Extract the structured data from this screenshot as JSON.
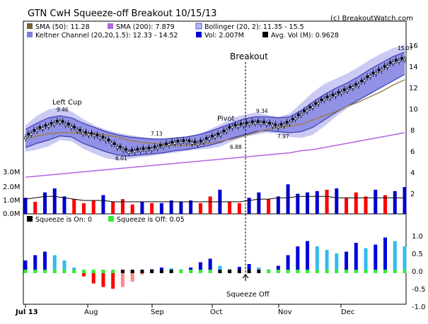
{
  "chart_title": "GTN CwH Squeeze-off Breakout 10/15/13",
  "credit": "(c) BreakoutWatch.com",
  "colors": {
    "up": "#0000cc",
    "down": "#ff0000",
    "sma50": "#333333",
    "sma200": "#aa44cc",
    "bollinger_fill": "#b8b8f0",
    "keltner_fill": "#7e7ee0",
    "keltner_line": "#3b3bb0",
    "sma_lines": "#9a8052",
    "sma200_line": "#b366dd",
    "squeeze_on": "#000000",
    "squeeze_off": "#33ee33",
    "mom_pos_a": "#0000dd",
    "mom_pos_b": "#33bbee",
    "mom_neg_a": "#ff0000",
    "mom_neg_b": "#ff8888"
  },
  "price_panel": {
    "legend": [
      {
        "label": "SMA (50): 11.28",
        "swatch": "#7a6233"
      },
      {
        "label": "SMA (200): 7.879",
        "swatch": "#b366dd"
      },
      {
        "label": "Bollinger (20, 2): 11.35 - 15.5",
        "swatch": "#b8b8f0"
      },
      {
        "label": "Keltner Channel (20,20,1.5): 12.33 - 14.52",
        "swatch": "#7e7ee0"
      },
      {
        "label": "Vol: 2.007M",
        "swatch": "#0000cc"
      },
      {
        "label": "Avg. Vol (M): 0.9628",
        "swatch": "#000000"
      }
    ],
    "y_ticks": [
      "2",
      "4",
      "6",
      "8",
      "10",
      "12",
      "14",
      "16"
    ],
    "volume_ticks": [
      "0.0M",
      "1.0M",
      "2.0M",
      "3.0M"
    ],
    "annotations": {
      "left_cup": "Left Cup",
      "high_1": "9.46",
      "low_1": "6.01",
      "mid_1": "7.13",
      "pivot": "Pivot",
      "pivot_high": "9.34",
      "handle_low": "6.88",
      "breakout_low": "7.97",
      "last_high": "15.07",
      "breakout": "Breakout"
    }
  },
  "squeeze_panel": {
    "legend": [
      {
        "label": "Squeeze is On: 0",
        "swatch": "#000000"
      },
      {
        "label": "Squeeze is Off: 0.05",
        "swatch": "#33ee33"
      }
    ],
    "y_ticks": [
      "-1.0",
      "-0.5",
      "0.0",
      "0.5",
      "1.0"
    ],
    "annotation": "Squeeze Off"
  },
  "x_ticks": [
    "Jul 13",
    "Aug",
    "Sep",
    "Oct",
    "Nov",
    "Dec"
  ],
  "chart_data": {
    "type": "line",
    "title": "GTN CwH Squeeze-off Breakout 10/15/13",
    "x_ticks": [
      "Jul 13",
      "Aug",
      "Sep",
      "Oct",
      "Nov",
      "Dec"
    ],
    "price_ylim": [
      0,
      16
    ],
    "volume_ylim": [
      0,
      3
    ],
    "squeeze_ylim": [
      -1,
      1.25
    ],
    "close_weekly": [
      7.6,
      8.3,
      8.7,
      9.1,
      8.6,
      8.0,
      7.8,
      7.4,
      6.7,
      6.2,
      6.4,
      6.5,
      6.8,
      7.1,
      7.2,
      7.0,
      7.5,
      7.9,
      8.6,
      8.8,
      9.0,
      8.9,
      8.6,
      9.0,
      9.8,
      10.5,
      11.2,
      11.6,
      12.1,
      12.6,
      13.4,
      14.0,
      14.7,
      15.0
    ],
    "series": [
      {
        "name": "SMA (50)",
        "values": [
          7.4,
          7.7,
          7.9,
          8.0,
          8.0,
          7.9,
          7.9,
          7.8,
          7.6,
          7.3,
          7.1,
          7.0,
          6.9,
          6.8,
          6.8,
          6.9,
          7.0,
          7.2,
          7.4,
          7.7,
          8.0,
          8.3,
          8.5,
          8.6,
          8.8,
          9.2,
          9.6,
          10.0,
          10.5,
          10.9,
          11.4,
          11.9,
          12.5,
          13.0
        ]
      },
      {
        "name": "SMA (200)",
        "values": [
          3.8,
          3.9,
          4.0,
          4.1,
          4.2,
          4.3,
          4.4,
          4.5,
          4.6,
          4.7,
          4.8,
          4.9,
          5.0,
          5.1,
          5.2,
          5.3,
          5.4,
          5.5,
          5.6,
          5.7,
          5.8,
          5.9,
          6.0,
          6.1,
          6.3,
          6.4,
          6.6,
          6.8,
          7.0,
          7.2,
          7.4,
          7.6,
          7.8,
          8.0
        ]
      },
      {
        "name": "Bollinger (20, 2) upper",
        "values": [
          8.7,
          9.6,
          10.2,
          10.4,
          10.0,
          9.3,
          8.7,
          8.3,
          8.0,
          7.8,
          7.6,
          7.5,
          7.4,
          7.5,
          7.6,
          7.8,
          8.3,
          8.8,
          9.4,
          9.7,
          9.9,
          9.7,
          9.5,
          9.8,
          10.8,
          11.8,
          12.6,
          13.1,
          13.6,
          14.2,
          14.9,
          15.5,
          16.0,
          16.3
        ]
      },
      {
        "name": "Bollinger (20, 2) lower",
        "values": [
          6.2,
          6.4,
          6.7,
          7.3,
          7.2,
          6.5,
          6.0,
          5.6,
          5.4,
          5.5,
          5.7,
          5.8,
          6.0,
          6.1,
          6.3,
          6.4,
          6.5,
          6.7,
          7.2,
          7.6,
          7.8,
          8.0,
          7.9,
          7.6,
          7.5,
          7.8,
          8.6,
          9.5,
          10.3,
          11.0,
          11.6,
          12.3,
          12.9,
          13.6
        ]
      },
      {
        "name": "Keltner Channel upper",
        "values": [
          8.3,
          8.9,
          9.4,
          9.6,
          9.4,
          8.9,
          8.5,
          8.1,
          7.8,
          7.6,
          7.5,
          7.4,
          7.4,
          7.5,
          7.6,
          7.8,
          8.1,
          8.5,
          8.9,
          9.3,
          9.5,
          9.5,
          9.4,
          9.5,
          10.1,
          10.9,
          11.6,
          12.2,
          12.7,
          13.3,
          14.0,
          14.6,
          15.2,
          15.6
        ]
      },
      {
        "name": "Keltner Channel lower",
        "values": [
          6.6,
          7.0,
          7.3,
          7.7,
          7.6,
          7.0,
          6.6,
          6.2,
          5.9,
          5.8,
          5.9,
          6.0,
          6.1,
          6.3,
          6.4,
          6.6,
          6.8,
          7.1,
          7.5,
          7.8,
          8.1,
          8.2,
          8.1,
          8.0,
          8.1,
          8.5,
          9.2,
          9.9,
          10.5,
          11.1,
          11.7,
          12.3,
          12.9,
          13.5
        ]
      }
    ],
    "volume_M": [
      1.2,
      0.9,
      1.6,
      1.9,
      1.3,
      1.1,
      0.8,
      1.0,
      1.4,
      0.9,
      1.1,
      0.7,
      0.9,
      0.8,
      0.8,
      1.0,
      0.9,
      1.0,
      0.8,
      1.3,
      1.8,
      0.9,
      0.8,
      1.2,
      1.6,
      1.1,
      1.3,
      2.2,
      1.5,
      1.6,
      1.7,
      1.8,
      1.9,
      1.2,
      1.6,
      1.3,
      1.8,
      1.4,
      1.7,
      2.0
    ],
    "volume_avg_M": [
      1.1,
      1.2,
      1.3,
      1.3,
      1.2,
      1.1,
      1.0,
      1.0,
      1.0,
      0.9,
      0.9,
      0.9,
      0.9,
      0.9,
      0.9,
      0.9,
      0.9,
      0.9,
      0.9,
      0.9,
      0.9,
      0.9,
      0.9,
      1.0,
      1.1,
      1.1,
      1.2,
      1.2,
      1.3,
      1.3,
      1.3,
      1.3,
      1.2,
      1.2,
      1.2,
      1.2,
      1.2,
      1.2,
      1.2,
      1.2
    ],
    "squeeze_momentum": [
      0.3,
      0.45,
      0.55,
      0.45,
      0.3,
      0.1,
      -0.15,
      -0.35,
      -0.45,
      -0.5,
      -0.45,
      -0.3,
      -0.1,
      0.05,
      0.1,
      0.08,
      0.05,
      0.1,
      0.25,
      0.35,
      0.15,
      0.05,
      0.12,
      0.2,
      0.1,
      0.05,
      0.15,
      0.45,
      0.7,
      0.85,
      0.7,
      0.6,
      0.5,
      0.55,
      0.8,
      0.65,
      0.75,
      0.95,
      0.85,
      0.7
    ]
  }
}
